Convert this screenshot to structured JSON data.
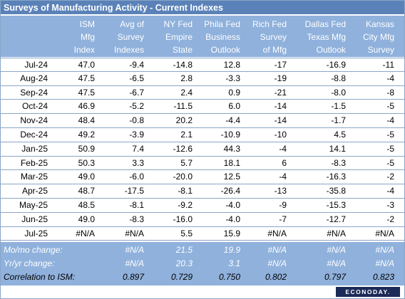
{
  "title": "Surveys of Manufacturing Activity - Current Indexes",
  "headers": [
    [
      "ISM",
      "Mfg",
      "Index"
    ],
    [
      "Avg of",
      "Survey",
      "Indexes"
    ],
    [
      "NY Fed",
      "Empire",
      "State"
    ],
    [
      "Phila Fed",
      "Business",
      "Outlook"
    ],
    [
      "Rich Fed",
      "Survey",
      "of Mfg"
    ],
    [
      "Dallas Fed",
      "Texas Mfg",
      "Outlook"
    ],
    [
      "Kansas",
      "City Mfg",
      "Survey"
    ]
  ],
  "rows": [
    {
      "label": "Jul-24",
      "values": [
        "47.0",
        "-9.4",
        "-14.8",
        "12.8",
        "-17",
        "-16.9",
        "-11"
      ]
    },
    {
      "label": "Aug-24",
      "values": [
        "47.5",
        "-6.5",
        "2.8",
        "-3.3",
        "-19",
        "-8.8",
        "-4"
      ]
    },
    {
      "label": "Sep-24",
      "values": [
        "47.5",
        "-6.7",
        "2.4",
        "0.9",
        "-21",
        "-8.0",
        "-8"
      ]
    },
    {
      "label": "Oct-24",
      "values": [
        "46.9",
        "-5.2",
        "-11.5",
        "6.0",
        "-14",
        "-1.5",
        "-5"
      ]
    },
    {
      "label": "Nov-24",
      "values": [
        "48.4",
        "-0.8",
        "20.2",
        "-4.4",
        "-14",
        "-1.7",
        "-4"
      ]
    },
    {
      "label": "Dec-24",
      "values": [
        "49.2",
        "-3.9",
        "2.1",
        "-10.9",
        "-10",
        "4.5",
        "-5"
      ]
    },
    {
      "label": "Jan-25",
      "values": [
        "50.9",
        "7.4",
        "-12.6",
        "44.3",
        "-4",
        "14.1",
        "-5"
      ]
    },
    {
      "label": "Feb-25",
      "values": [
        "50.3",
        "3.3",
        "5.7",
        "18.1",
        "6",
        "-8.3",
        "-5"
      ]
    },
    {
      "label": "Mar-25",
      "values": [
        "49.0",
        "-6.0",
        "-20.0",
        "12.5",
        "-4",
        "-16.3",
        "-2"
      ]
    },
    {
      "label": "Apr-25",
      "values": [
        "48.7",
        "-17.5",
        "-8.1",
        "-26.4",
        "-13",
        "-35.8",
        "-4"
      ]
    },
    {
      "label": "May-25",
      "values": [
        "48.5",
        "-8.1",
        "-9.2",
        "-4.0",
        "-9",
        "-15.3",
        "-3"
      ]
    },
    {
      "label": "Jun-25",
      "values": [
        "49.0",
        "-8.3",
        "-16.0",
        "-4.0",
        "-7",
        "-12.7",
        "-2"
      ]
    },
    {
      "label": "Jul-25",
      "values": [
        "#N/A",
        "#N/A",
        "5.5",
        "15.9",
        "#N/A",
        "#N/A",
        "#N/A"
      ]
    }
  ],
  "summary": [
    {
      "label": "Mo/mo change:",
      "values": [
        "",
        "#N/A",
        "21.5",
        "19.9",
        "#N/A",
        "#N/A",
        "#N/A"
      ]
    },
    {
      "label": "Yr/yr change:",
      "values": [
        "",
        "#N/A",
        "20.3",
        "3.1",
        "#N/A",
        "#N/A",
        "#N/A"
      ]
    },
    {
      "label": "Correlation to ISM:",
      "values": [
        "",
        "0.897",
        "0.729",
        "0.750",
        "0.802",
        "0.797",
        "0.823"
      ]
    }
  ],
  "logo_text": "ECONODAY."
}
